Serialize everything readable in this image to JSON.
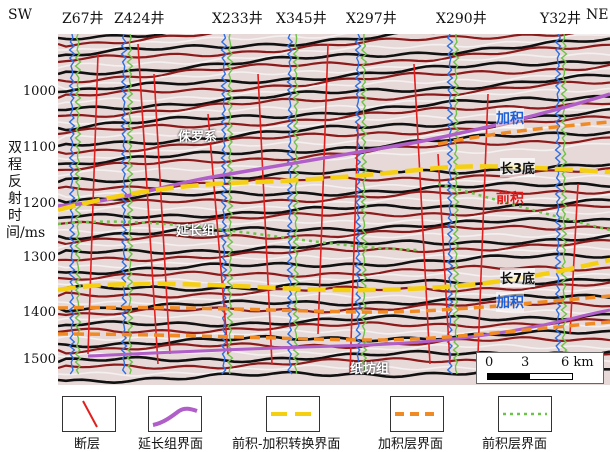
{
  "corner_labels": {
    "left": "SW",
    "right": "NE"
  },
  "wells": [
    {
      "name": "Z67井"
    },
    {
      "name": "Z424井"
    },
    {
      "name": "X233井"
    },
    {
      "name": "X345井"
    },
    {
      "name": "X297井"
    },
    {
      "name": "X290井"
    },
    {
      "name": "Y32井"
    }
  ],
  "y_axis": {
    "label": "双程反射时间/ms",
    "ticks": [
      "1000",
      "1100",
      "1200",
      "1300",
      "1400",
      "1500"
    ]
  },
  "annotations": {
    "jurassic": "侏罗系",
    "yanchang": "延长组",
    "zhifang": "纸坊组",
    "aggradation_upper": "加积",
    "chang3_base": "长3底",
    "progradation": "前积",
    "chang7_base": "长7底",
    "aggradation_lower": "加积"
  },
  "scale_bar": {
    "labels": [
      "0",
      "3",
      "6 km"
    ]
  },
  "legend": [
    {
      "label": "断层",
      "icon": "fault-line-icon",
      "color": "#e0201f"
    },
    {
      "label": "延长组界面",
      "icon": "yanchang-boundary-icon",
      "color": "#b05ec8"
    },
    {
      "label": "前积-加积转换界面",
      "icon": "transition-boundary-icon",
      "color": "#f5cf12"
    },
    {
      "label": "加积层界面",
      "icon": "aggradation-boundary-icon",
      "color": "#f08a24"
    },
    {
      "label": "前积层界面",
      "icon": "progradation-boundary-icon",
      "color": "#6ec24a"
    }
  ]
}
